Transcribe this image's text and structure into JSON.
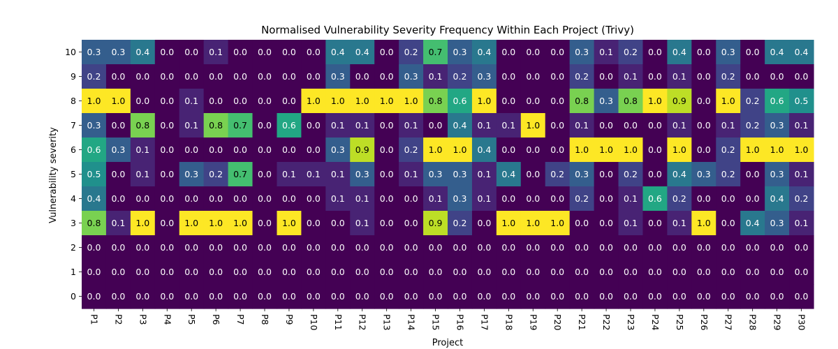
{
  "chart_data": {
    "type": "heatmap",
    "title": "Normalised Vulnerability Severity Frequency Within Each Project (Trivy)",
    "xlabel": "Project",
    "ylabel": "Vulnerability severity",
    "x_categories": [
      "P1",
      "P2",
      "P3",
      "P4",
      "P5",
      "P6",
      "P7",
      "P8",
      "P9",
      "P10",
      "P11",
      "P12",
      "P13",
      "P14",
      "P15",
      "P16",
      "P17",
      "P18",
      "P19",
      "P20",
      "P21",
      "P22",
      "P23",
      "P24",
      "P25",
      "P26",
      "P27",
      "P28",
      "P29",
      "P30"
    ],
    "y_categories": [
      "10",
      "9",
      "8",
      "7",
      "6",
      "5",
      "4",
      "3",
      "2",
      "1",
      "0"
    ],
    "colormap": "viridis",
    "value_range": [
      0,
      1
    ],
    "values": [
      [
        0.3,
        0.3,
        0.4,
        0.0,
        0.0,
        0.1,
        0.0,
        0.0,
        0.0,
        0.0,
        0.4,
        0.4,
        0.0,
        0.2,
        0.7,
        0.3,
        0.4,
        0.0,
        0.0,
        0.0,
        0.3,
        0.1,
        0.2,
        0.0,
        0.4,
        0.0,
        0.3,
        0.0,
        0.4,
        0.4
      ],
      [
        0.2,
        0.0,
        0.0,
        0.0,
        0.0,
        0.0,
        0.0,
        0.0,
        0.0,
        0.0,
        0.3,
        0.0,
        0.0,
        0.3,
        0.1,
        0.2,
        0.3,
        0.0,
        0.0,
        0.0,
        0.2,
        0.0,
        0.1,
        0.0,
        0.1,
        0.0,
        0.2,
        0.0,
        0.0,
        0.0
      ],
      [
        1.0,
        1.0,
        0.0,
        0.0,
        0.1,
        0.0,
        0.0,
        0.0,
        0.0,
        1.0,
        1.0,
        1.0,
        1.0,
        1.0,
        0.8,
        0.6,
        1.0,
        0.0,
        0.0,
        0.0,
        0.8,
        0.3,
        0.8,
        1.0,
        0.9,
        0.0,
        1.0,
        0.2,
        0.6,
        0.5
      ],
      [
        0.3,
        0.0,
        0.8,
        0.0,
        0.1,
        0.8,
        0.7,
        0.0,
        0.6,
        0.0,
        0.1,
        0.1,
        0.0,
        0.1,
        0.0,
        0.4,
        0.1,
        0.1,
        1.0,
        0.0,
        0.1,
        0.0,
        0.0,
        0.0,
        0.1,
        0.0,
        0.1,
        0.2,
        0.3,
        0.1
      ],
      [
        0.6,
        0.3,
        0.1,
        0.0,
        0.0,
        0.0,
        0.0,
        0.0,
        0.0,
        0.0,
        0.3,
        0.9,
        0.0,
        0.2,
        1.0,
        1.0,
        0.4,
        0.0,
        0.0,
        0.0,
        1.0,
        1.0,
        1.0,
        0.0,
        1.0,
        0.0,
        0.2,
        1.0,
        1.0,
        1.0
      ],
      [
        0.5,
        0.0,
        0.1,
        0.0,
        0.3,
        0.2,
        0.7,
        0.0,
        0.1,
        0.1,
        0.1,
        0.3,
        0.0,
        0.1,
        0.3,
        0.3,
        0.1,
        0.4,
        0.0,
        0.2,
        0.3,
        0.0,
        0.2,
        0.0,
        0.4,
        0.3,
        0.2,
        0.0,
        0.3,
        0.1
      ],
      [
        0.4,
        0.0,
        0.0,
        0.0,
        0.0,
        0.0,
        0.0,
        0.0,
        0.0,
        0.0,
        0.1,
        0.1,
        0.0,
        0.0,
        0.1,
        0.3,
        0.1,
        0.0,
        0.0,
        0.0,
        0.2,
        0.0,
        0.1,
        0.6,
        0.2,
        0.0,
        0.0,
        0.0,
        0.4,
        0.2
      ],
      [
        0.8,
        0.1,
        1.0,
        0.0,
        1.0,
        1.0,
        1.0,
        0.0,
        1.0,
        0.0,
        0.0,
        0.1,
        0.0,
        0.0,
        0.9,
        0.2,
        0.0,
        1.0,
        1.0,
        1.0,
        0.0,
        0.0,
        0.1,
        0.0,
        0.1,
        1.0,
        0.0,
        0.4,
        0.3,
        0.1
      ],
      [
        0.0,
        0.0,
        0.0,
        0.0,
        0.0,
        0.0,
        0.0,
        0.0,
        0.0,
        0.0,
        0.0,
        0.0,
        0.0,
        0.0,
        0.0,
        0.0,
        0.0,
        0.0,
        0.0,
        0.0,
        0.0,
        0.0,
        0.0,
        0.0,
        0.0,
        0.0,
        0.0,
        0.0,
        0.0,
        0.0
      ],
      [
        0.0,
        0.0,
        0.0,
        0.0,
        0.0,
        0.0,
        0.0,
        0.0,
        0.0,
        0.0,
        0.0,
        0.0,
        0.0,
        0.0,
        0.0,
        0.0,
        0.0,
        0.0,
        0.0,
        0.0,
        0.0,
        0.0,
        0.0,
        0.0,
        0.0,
        0.0,
        0.0,
        0.0,
        0.0,
        0.0
      ],
      [
        0.0,
        0.0,
        0.0,
        0.0,
        0.0,
        0.0,
        0.0,
        0.0,
        0.0,
        0.0,
        0.0,
        0.0,
        0.0,
        0.0,
        0.0,
        0.0,
        0.0,
        0.0,
        0.0,
        0.0,
        0.0,
        0.0,
        0.0,
        0.0,
        0.0,
        0.0,
        0.0,
        0.0,
        0.0,
        0.0
      ]
    ]
  }
}
